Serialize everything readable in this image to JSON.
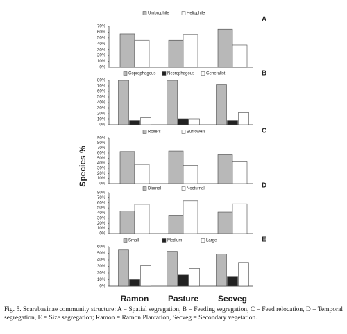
{
  "chart_data": [
    {
      "type": "bar",
      "title": "A",
      "series": [
        {
          "name": "Umbrophile",
          "color": "#b8b8b8",
          "values": [
            57,
            46,
            65
          ]
        },
        {
          "name": "Heliophile",
          "color": "#ffffff",
          "values": [
            46,
            56,
            38
          ]
        }
      ],
      "ylim": [
        0,
        70
      ],
      "yticks": [
        {
          "value": 0,
          "label": "0%"
        },
        {
          "value": 10,
          "label": "10%"
        },
        {
          "value": 20,
          "label": "20%"
        },
        {
          "value": 30,
          "label": "30%"
        },
        {
          "value": 40,
          "label": "40%"
        },
        {
          "value": 50,
          "label": "50%"
        },
        {
          "value": 60,
          "label": "60%"
        },
        {
          "value": 70,
          "label": "70%"
        }
      ]
    },
    {
      "type": "bar",
      "title": "B",
      "series": [
        {
          "name": "Coprophagous",
          "color": "#b8b8b8",
          "values": [
            80,
            80,
            73
          ]
        },
        {
          "name": "Necrophagous",
          "color": "#222222",
          "values": [
            8,
            10,
            8
          ]
        },
        {
          "name": "Generalist",
          "color": "#ffffff",
          "values": [
            13,
            10,
            22
          ]
        }
      ],
      "ylim": [
        0,
        80
      ],
      "yticks": [
        {
          "value": 0,
          "label": "0%"
        },
        {
          "value": 10,
          "label": "10%"
        },
        {
          "value": 20,
          "label": "20%"
        },
        {
          "value": 30,
          "label": "30%"
        },
        {
          "value": 40,
          "label": "40%"
        },
        {
          "value": 50,
          "label": "50%"
        },
        {
          "value": 60,
          "label": "60%"
        },
        {
          "value": 70,
          "label": "70%"
        },
        {
          "value": 80,
          "label": "80%"
        }
      ]
    },
    {
      "type": "bar",
      "title": "C",
      "series": [
        {
          "name": "Rollers",
          "color": "#b8b8b8",
          "values": [
            63,
            64,
            58
          ]
        },
        {
          "name": "Burrowers",
          "color": "#ffffff",
          "values": [
            38,
            36,
            43
          ]
        }
      ],
      "ylim": [
        0,
        90
      ],
      "yticks": [
        {
          "value": 0,
          "label": "0%"
        },
        {
          "value": 10,
          "label": "10%"
        },
        {
          "value": 20,
          "label": "20%"
        },
        {
          "value": 30,
          "label": "30%"
        },
        {
          "value": 40,
          "label": "40%"
        },
        {
          "value": 50,
          "label": "50%"
        },
        {
          "value": 60,
          "label": "60%"
        },
        {
          "value": 70,
          "label": "70%"
        },
        {
          "value": 80,
          "label": "80%"
        },
        {
          "value": 90,
          "label": "90%"
        }
      ]
    },
    {
      "type": "bar",
      "title": "D",
      "series": [
        {
          "name": "Diurnal",
          "color": "#b8b8b8",
          "values": [
            44,
            36,
            42
          ]
        },
        {
          "name": "Nocturnal",
          "color": "#ffffff",
          "values": [
            57,
            64,
            58
          ]
        }
      ],
      "ylim": [
        0,
        80
      ],
      "yticks": [
        {
          "value": 0,
          "label": "0%"
        },
        {
          "value": 10,
          "label": "10%"
        },
        {
          "value": 20,
          "label": "20%"
        },
        {
          "value": 30,
          "label": "30%"
        },
        {
          "value": 40,
          "label": "40%"
        },
        {
          "value": 50,
          "label": "50%"
        },
        {
          "value": 60,
          "label": "60%"
        },
        {
          "value": 70,
          "label": "70%"
        },
        {
          "value": 80,
          "label": "80%"
        }
      ]
    },
    {
      "type": "bar",
      "title": "E",
      "series": [
        {
          "name": "Small",
          "color": "#b8b8b8",
          "values": [
            55,
            53,
            49
          ]
        },
        {
          "name": "Medium",
          "color": "#222222",
          "values": [
            10,
            17,
            14
          ]
        },
        {
          "name": "Large",
          "color": "#ffffff",
          "values": [
            31,
            27,
            36
          ]
        }
      ],
      "ylim": [
        0,
        60
      ],
      "yticks": [
        {
          "value": 0,
          "label": "0%"
        },
        {
          "value": 10,
          "label": "10%"
        },
        {
          "value": 20,
          "label": "20%"
        },
        {
          "value": 30,
          "label": "30%"
        },
        {
          "value": 40,
          "label": "40%"
        },
        {
          "value": 50,
          "label": "50%"
        },
        {
          "value": 60,
          "label": "60%"
        }
      ]
    }
  ],
  "categories": [
    "Ramon",
    "Pasture",
    "Secveg"
  ],
  "ylabel": "Species %",
  "caption": "Fig. 5. Scarabaeinae community structure: A = Spatial segregation, B = Feeding segregation, C = Feed relocation, D = Temporal segregation, E = Size segregation; Ramon = Ramon Plantation, Secveg = Secondary vegetation."
}
